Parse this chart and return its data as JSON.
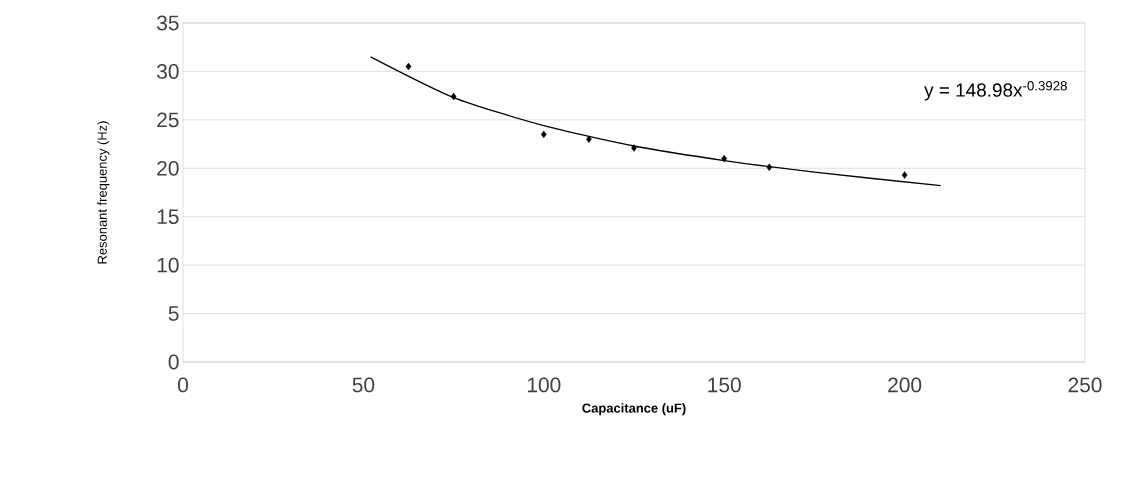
{
  "chart_data": {
    "type": "scatter",
    "xlabel": "Capacitance (uF)",
    "ylabel": "Resonant frequency (Hz)",
    "xlim": [
      0,
      250
    ],
    "xticks": [
      0,
      50,
      100,
      150,
      200,
      250
    ],
    "ylim": [
      0,
      35
    ],
    "yticks": [
      0,
      5,
      10,
      15,
      20,
      25,
      30,
      35
    ],
    "grid": "y",
    "marker": "diamond",
    "series": [
      {
        "color": "#000000",
        "x": [
          62.5,
          75,
          100,
          112.5,
          125,
          150,
          162.5,
          200
        ],
        "values": [
          30.5,
          27.4,
          23.5,
          23.0,
          22.1,
          21.0,
          20.1,
          19.3
        ]
      },
      {
        "type": "line",
        "color": "#000000",
        "marker": "none",
        "line_style": "solid",
        "x": [
          52,
          75,
          100,
          125,
          150,
          175,
          210
        ],
        "values": [
          31.5,
          27.3,
          24.4,
          22.3,
          20.8,
          19.6,
          18.2
        ]
      }
    ],
    "annotations": [
      "y = 148.98x$^{-0.3928}$"
    ]
  }
}
